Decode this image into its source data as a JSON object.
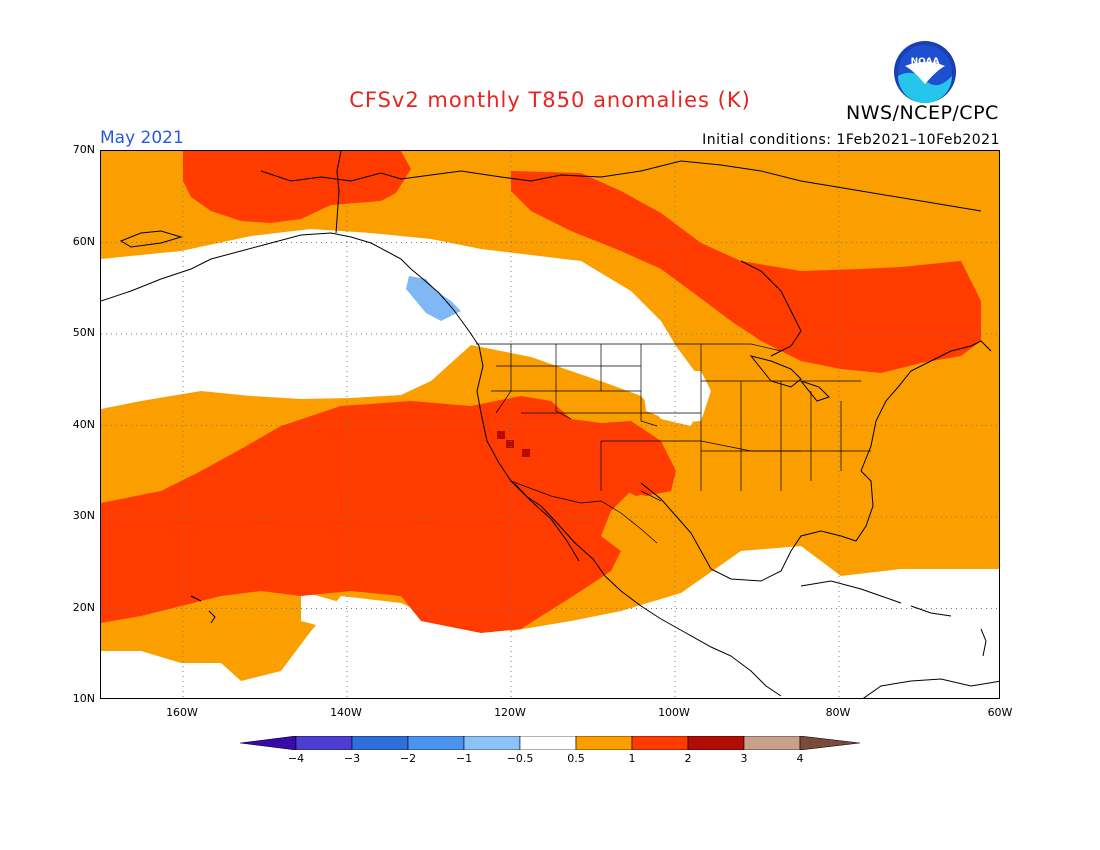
{
  "title": "CFSv2 monthly T850 anomalies (K)",
  "agency": "NWS/NCEP/CPC",
  "logo_text": "NOAA",
  "month": "May 2021",
  "initial_conditions": "Initial conditions: 1Feb2021–10Feb2021",
  "lat_labels": [
    "70N",
    "60N",
    "50N",
    "40N",
    "30N",
    "20N",
    "10N"
  ],
  "lon_labels": [
    "160W",
    "140W",
    "120W",
    "100W",
    "80W",
    "60W"
  ],
  "colorbar": {
    "labels": [
      "−4",
      "−3",
      "−2",
      "−1",
      "−0.5",
      "0.5",
      "1",
      "2",
      "3",
      "4"
    ],
    "colors": [
      "#3a0aa8",
      "#4c3ed1",
      "#2f6fdc",
      "#4a94ef",
      "#8cc2f7",
      "#ffffff",
      "#fb9f00",
      "#ff3b00",
      "#b20c04",
      "#c9a08a",
      "#7a4a3c"
    ]
  },
  "colors": {
    "orange": "#fb9f00",
    "red": "#ff3b00",
    "darkred": "#b20c04",
    "lightblue": "#7fb8f5"
  }
}
